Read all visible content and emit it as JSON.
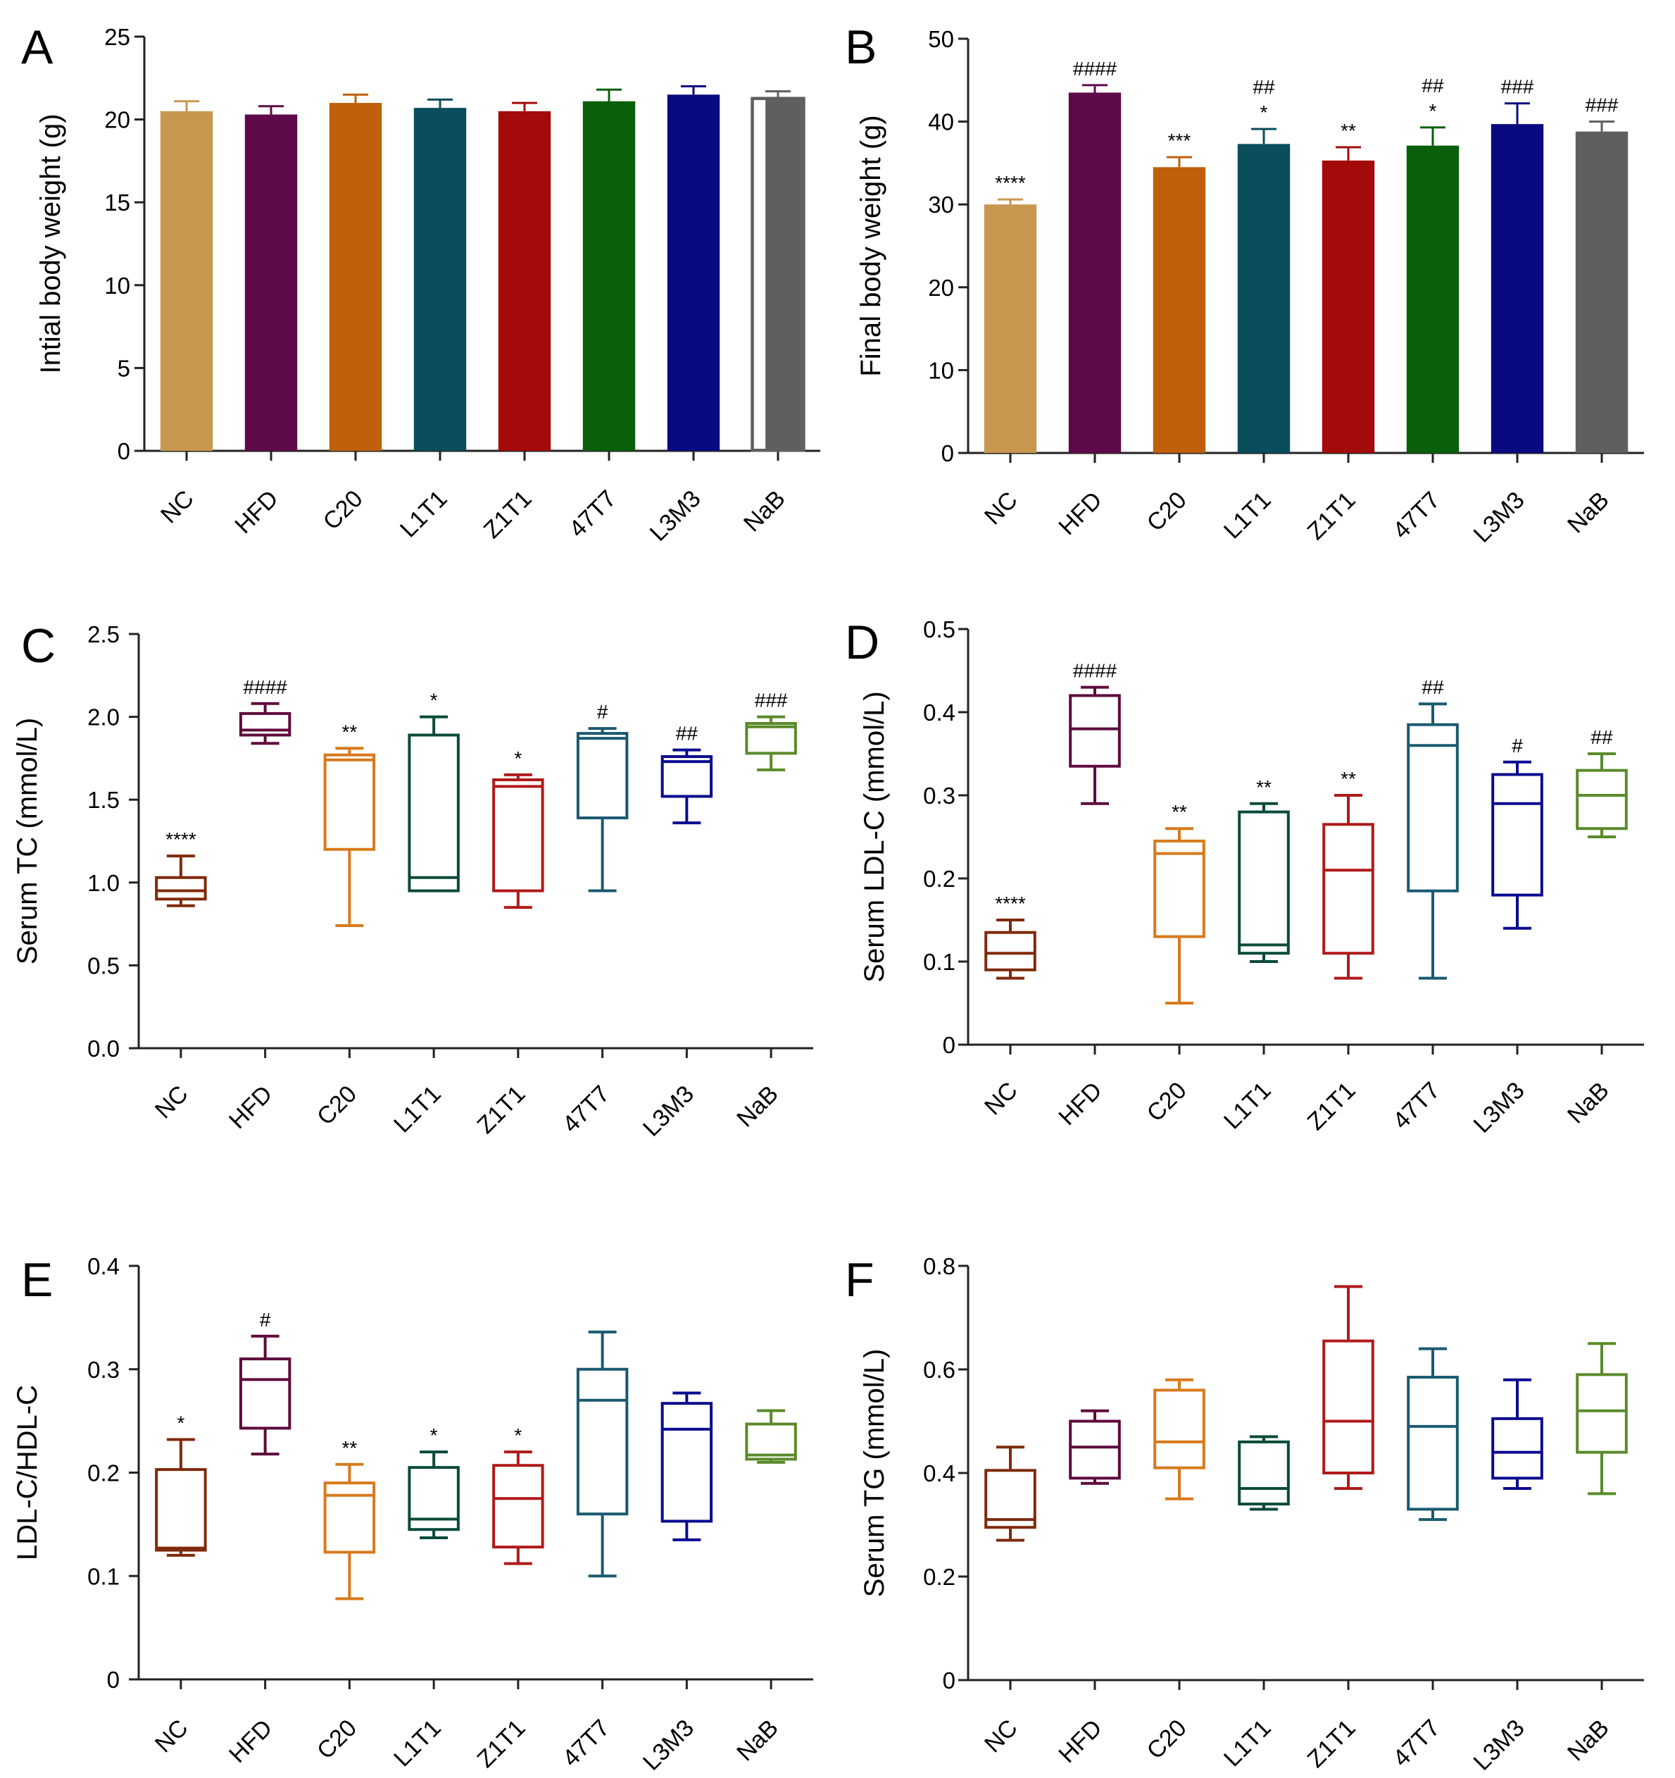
{
  "groups": [
    "NC",
    "HFD",
    "C20",
    "L1T1",
    "Z1T1",
    "47T7",
    "L3M3",
    "NaB"
  ],
  "colors": {
    "NC": "#c8974f",
    "HFD": "#5e0a4a",
    "C20": "#c0600a",
    "L1T1": "#0a4d5c",
    "Z1T1": "#a30a0a",
    "47T7": "#0a5f0a",
    "L3M3": "#0a0a80",
    "NaB": "#5f5f5f"
  },
  "box_colors": {
    "NC": "#7f2a0a",
    "HFD": "#5e0a3c",
    "C20": "#d87a1c",
    "L1T1": "#0a4a3a",
    "Z1T1": "#b01a1a",
    "47T7": "#1a5a70",
    "L3M3": "#0a0a90",
    "NaB": "#5a8a2a"
  },
  "chart_data": [
    {
      "panel": "A",
      "type": "bar",
      "ylabel": "Intial body weight (g)",
      "ylim": [
        0,
        25
      ],
      "yticks": [
        0,
        5,
        10,
        15,
        20,
        25
      ],
      "categories": [
        "NC",
        "HFD",
        "C20",
        "L1T1",
        "Z1T1",
        "47T7",
        "L3M3",
        "NaB"
      ],
      "values": [
        20.5,
        20.3,
        21.0,
        20.7,
        20.5,
        21.1,
        21.5,
        21.3
      ],
      "errors": [
        0.6,
        0.5,
        0.5,
        0.5,
        0.5,
        0.7,
        0.5,
        0.4
      ],
      "annotations": [
        "",
        "",
        "",
        "",
        "",
        "",
        "",
        ""
      ]
    },
    {
      "panel": "B",
      "type": "bar",
      "ylabel": "Final body weight (g)",
      "ylim": [
        0,
        50
      ],
      "yticks": [
        0,
        10,
        20,
        30,
        40,
        50
      ],
      "categories": [
        "NC",
        "HFD",
        "C20",
        "L1T1",
        "Z1T1",
        "47T7",
        "L3M3",
        "NaB"
      ],
      "values": [
        30.0,
        43.5,
        34.5,
        37.3,
        35.3,
        37.1,
        39.7,
        38.8
      ],
      "errors": [
        0.6,
        0.9,
        1.2,
        1.8,
        1.6,
        2.2,
        2.5,
        1.2
      ],
      "annotations": [
        "****",
        "####",
        "***",
        "##\n*",
        "**",
        "##\n*",
        "###",
        "###"
      ]
    },
    {
      "panel": "C",
      "type": "box",
      "ylabel": "Serum TC (mmol/L)",
      "ylim": [
        0,
        2.5
      ],
      "yticks": [
        "0.0",
        "0.5",
        "1.0",
        "1.5",
        "2.0",
        "2.5"
      ],
      "categories": [
        "NC",
        "HFD",
        "C20",
        "L1T1",
        "Z1T1",
        "47T7",
        "L3M3",
        "NaB"
      ],
      "boxes": [
        {
          "min": 0.86,
          "q1": 0.9,
          "median": 0.95,
          "q3": 1.03,
          "max": 1.16
        },
        {
          "min": 1.84,
          "q1": 1.89,
          "median": 1.92,
          "q3": 2.02,
          "max": 2.08
        },
        {
          "min": 0.74,
          "q1": 1.2,
          "median": 1.74,
          "q3": 1.77,
          "max": 1.81
        },
        {
          "min": 0.95,
          "q1": 0.95,
          "median": 1.03,
          "q3": 1.89,
          "max": 2.0
        },
        {
          "min": 0.85,
          "q1": 0.95,
          "median": 1.58,
          "q3": 1.62,
          "max": 1.65
        },
        {
          "min": 0.95,
          "q1": 1.39,
          "median": 1.87,
          "q3": 1.9,
          "max": 1.93
        },
        {
          "min": 1.36,
          "q1": 1.52,
          "median": 1.73,
          "q3": 1.76,
          "max": 1.8
        },
        {
          "min": 1.68,
          "q1": 1.78,
          "median": 1.94,
          "q3": 1.96,
          "max": 2.0
        }
      ],
      "annotations": [
        "****",
        "####",
        "**",
        "*",
        "*",
        "#",
        "##",
        "###"
      ]
    },
    {
      "panel": "D",
      "type": "box",
      "ylabel": "Serum LDL-C (mmol/L)",
      "ylim": [
        0,
        0.5
      ],
      "yticks": [
        "0",
        "0.1",
        "0.2",
        "0.3",
        "0.4",
        "0.5"
      ],
      "categories": [
        "NC",
        "HFD",
        "C20",
        "L1T1",
        "Z1T1",
        "47T7",
        "L3M3",
        "NaB"
      ],
      "boxes": [
        {
          "min": 0.08,
          "q1": 0.09,
          "median": 0.11,
          "q3": 0.135,
          "max": 0.15
        },
        {
          "min": 0.29,
          "q1": 0.335,
          "median": 0.38,
          "q3": 0.42,
          "max": 0.43
        },
        {
          "min": 0.05,
          "q1": 0.13,
          "median": 0.23,
          "q3": 0.245,
          "max": 0.26
        },
        {
          "min": 0.1,
          "q1": 0.11,
          "median": 0.12,
          "q3": 0.28,
          "max": 0.29
        },
        {
          "min": 0.08,
          "q1": 0.11,
          "median": 0.21,
          "q3": 0.265,
          "max": 0.3
        },
        {
          "min": 0.08,
          "q1": 0.185,
          "median": 0.36,
          "q3": 0.385,
          "max": 0.41
        },
        {
          "min": 0.14,
          "q1": 0.18,
          "median": 0.29,
          "q3": 0.325,
          "max": 0.34
        },
        {
          "min": 0.25,
          "q1": 0.26,
          "median": 0.3,
          "q3": 0.33,
          "max": 0.35
        }
      ],
      "annotations": [
        "****",
        "####",
        "**",
        "**",
        "**",
        "##",
        "#",
        "##"
      ]
    },
    {
      "panel": "E",
      "type": "box",
      "ylabel": "LDL-C/HDL-C",
      "ylim": [
        0,
        0.4
      ],
      "yticks": [
        "0",
        "0.1",
        "0.2",
        "0.3",
        "0.4"
      ],
      "categories": [
        "NC",
        "HFD",
        "C20",
        "L1T1",
        "Z1T1",
        "47T7",
        "L3M3",
        "NaB"
      ],
      "boxes": [
        {
          "min": 0.12,
          "q1": 0.125,
          "median": 0.127,
          "q3": 0.203,
          "max": 0.232
        },
        {
          "min": 0.218,
          "q1": 0.243,
          "median": 0.29,
          "q3": 0.31,
          "max": 0.332
        },
        {
          "min": 0.078,
          "q1": 0.123,
          "median": 0.178,
          "q3": 0.19,
          "max": 0.208
        },
        {
          "min": 0.137,
          "q1": 0.145,
          "median": 0.155,
          "q3": 0.205,
          "max": 0.22
        },
        {
          "min": 0.112,
          "q1": 0.128,
          "median": 0.175,
          "q3": 0.207,
          "max": 0.22
        },
        {
          "min": 0.1,
          "q1": 0.16,
          "median": 0.27,
          "q3": 0.3,
          "max": 0.336
        },
        {
          "min": 0.135,
          "q1": 0.153,
          "median": 0.242,
          "q3": 0.267,
          "max": 0.277
        },
        {
          "min": 0.21,
          "q1": 0.213,
          "median": 0.217,
          "q3": 0.247,
          "max": 0.26
        }
      ],
      "annotations": [
        "*",
        "#",
        "**",
        "*",
        "*",
        "",
        "",
        ""
      ]
    },
    {
      "panel": "F",
      "type": "box",
      "ylabel": "Serum TG (mmol/L)",
      "ylim": [
        0,
        0.8
      ],
      "yticks": [
        "0",
        "0.2",
        "0.4",
        "0.6",
        "0.8"
      ],
      "categories": [
        "NC",
        "HFD",
        "C20",
        "L1T1",
        "Z1T1",
        "47T7",
        "L3M3",
        "NaB"
      ],
      "boxes": [
        {
          "min": 0.27,
          "q1": 0.295,
          "median": 0.31,
          "q3": 0.405,
          "max": 0.45
        },
        {
          "min": 0.38,
          "q1": 0.39,
          "median": 0.45,
          "q3": 0.5,
          "max": 0.52
        },
        {
          "min": 0.35,
          "q1": 0.41,
          "median": 0.46,
          "q3": 0.56,
          "max": 0.58
        },
        {
          "min": 0.33,
          "q1": 0.34,
          "median": 0.37,
          "q3": 0.46,
          "max": 0.47
        },
        {
          "min": 0.37,
          "q1": 0.4,
          "median": 0.5,
          "q3": 0.655,
          "max": 0.76
        },
        {
          "min": 0.31,
          "q1": 0.33,
          "median": 0.49,
          "q3": 0.585,
          "max": 0.64
        },
        {
          "min": 0.37,
          "q1": 0.39,
          "median": 0.44,
          "q3": 0.505,
          "max": 0.58
        },
        {
          "min": 0.36,
          "q1": 0.44,
          "median": 0.52,
          "q3": 0.59,
          "max": 0.65
        }
      ],
      "annotations": [
        "",
        "",
        "",
        "",
        "",
        "",
        "",
        ""
      ]
    }
  ]
}
